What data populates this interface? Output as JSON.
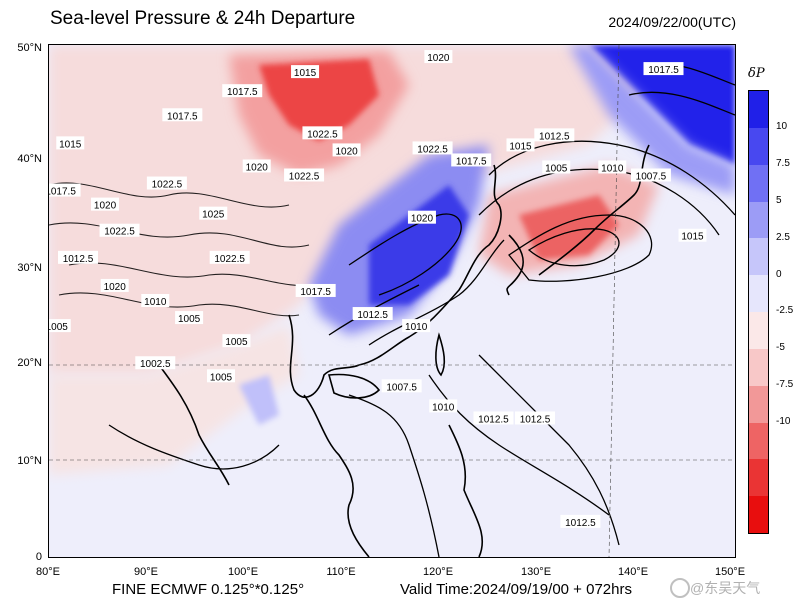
{
  "title": "Sea-level Pressure & 24h Departure",
  "datetime": "2024/09/22/00(UTC)",
  "footer_left": "FINE ECMWF 0.125°*0.125°",
  "footer_right": "Valid Time:2024/09/19/00 + 072hrs",
  "watermark": "@东吴天气",
  "map": {
    "lon_range": [
      80,
      151
    ],
    "lat_range": [
      0,
      51
    ],
    "lat_ticks": [
      "50°N",
      "40°N",
      "30°N",
      "20°N",
      "10°N",
      "0"
    ],
    "lon_ticks": [
      "80°E",
      "90°E",
      "100°E",
      "110°E",
      "120°E",
      "130°E",
      "140°E",
      "150°E"
    ],
    "isobar_labels": [
      {
        "text": "1020",
        "lon": 120.3,
        "lat": 49.8
      },
      {
        "text": "1015",
        "lon": 106.5,
        "lat": 48.3
      },
      {
        "text": "1017.5",
        "lon": 100.0,
        "lat": 46.4
      },
      {
        "text": "1017.5",
        "lon": 93.8,
        "lat": 44.0
      },
      {
        "text": "1022.5",
        "lon": 108.3,
        "lat": 42.2
      },
      {
        "text": "1015",
        "lon": 82.2,
        "lat": 41.2
      },
      {
        "text": "1020",
        "lon": 110.8,
        "lat": 40.5
      },
      {
        "text": "1022.5",
        "lon": 119.7,
        "lat": 40.7
      },
      {
        "text": "1017.5",
        "lon": 123.7,
        "lat": 39.5
      },
      {
        "text": "1012.5",
        "lon": 132.3,
        "lat": 42.0
      },
      {
        "text": "1015",
        "lon": 128.8,
        "lat": 41.0
      },
      {
        "text": "1005",
        "lon": 132.5,
        "lat": 38.8
      },
      {
        "text": "1010",
        "lon": 138.3,
        "lat": 38.8
      },
      {
        "text": "1007.5",
        "lon": 142.3,
        "lat": 38.0
      },
      {
        "text": "1017.5",
        "lon": 81.2,
        "lat": 36.5
      },
      {
        "text": "1022.5",
        "lon": 92.2,
        "lat": 37.2
      },
      {
        "text": "1020",
        "lon": 101.5,
        "lat": 38.9
      },
      {
        "text": "1022.5",
        "lon": 106.4,
        "lat": 38.0
      },
      {
        "text": "1020",
        "lon": 85.8,
        "lat": 35.1
      },
      {
        "text": "1025",
        "lon": 97.0,
        "lat": 34.2
      },
      {
        "text": "1022.5",
        "lon": 87.3,
        "lat": 32.5
      },
      {
        "text": "1020",
        "lon": 118.6,
        "lat": 33.8
      },
      {
        "text": "1012.5",
        "lon": 83.0,
        "lat": 29.8
      },
      {
        "text": "1022.5",
        "lon": 98.7,
        "lat": 29.8
      },
      {
        "text": "1020",
        "lon": 86.8,
        "lat": 27.0
      },
      {
        "text": "1010",
        "lon": 91.0,
        "lat": 25.5
      },
      {
        "text": "1015",
        "lon": 146.6,
        "lat": 32.0
      },
      {
        "text": "1017.5",
        "lon": 107.6,
        "lat": 26.5
      },
      {
        "text": "1012.5",
        "lon": 113.5,
        "lat": 24.2
      },
      {
        "text": "1005",
        "lon": 94.5,
        "lat": 23.8
      },
      {
        "text": "1005",
        "lon": 80.8,
        "lat": 23.0
      },
      {
        "text": "1010",
        "lon": 118.0,
        "lat": 23.0
      },
      {
        "text": "1005",
        "lon": 99.4,
        "lat": 21.5
      },
      {
        "text": "1002.5",
        "lon": 91.0,
        "lat": 19.3
      },
      {
        "text": "1005",
        "lon": 97.8,
        "lat": 18.0
      },
      {
        "text": "1007.5",
        "lon": 116.5,
        "lat": 17.0
      },
      {
        "text": "1010",
        "lon": 120.8,
        "lat": 15.0
      },
      {
        "text": "1012.5",
        "lon": 126.0,
        "lat": 13.8
      },
      {
        "text": "1012.5",
        "lon": 130.3,
        "lat": 13.8
      },
      {
        "text": "1017.5",
        "lon": 143.6,
        "lat": 48.6
      },
      {
        "text": "1012.5",
        "lon": 135.0,
        "lat": 3.5
      }
    ]
  },
  "colorbar": {
    "title": "δP",
    "segments": [
      {
        "color": "#2020e8"
      },
      {
        "color": "#4848f0"
      },
      {
        "color": "#7070f4"
      },
      {
        "color": "#9c9cf6"
      },
      {
        "color": "#c6c6fa"
      },
      {
        "color": "#e6e6fc"
      },
      {
        "color": "#fbe8e8"
      },
      {
        "color": "#f8c8c8"
      },
      {
        "color": "#f29898"
      },
      {
        "color": "#ee6464"
      },
      {
        "color": "#ea3434"
      },
      {
        "color": "#e80e0e"
      }
    ],
    "labels": [
      "10",
      "7.5",
      "5",
      "2.5",
      "0",
      "-2.5",
      "-5",
      "-7.5",
      "-10"
    ]
  }
}
